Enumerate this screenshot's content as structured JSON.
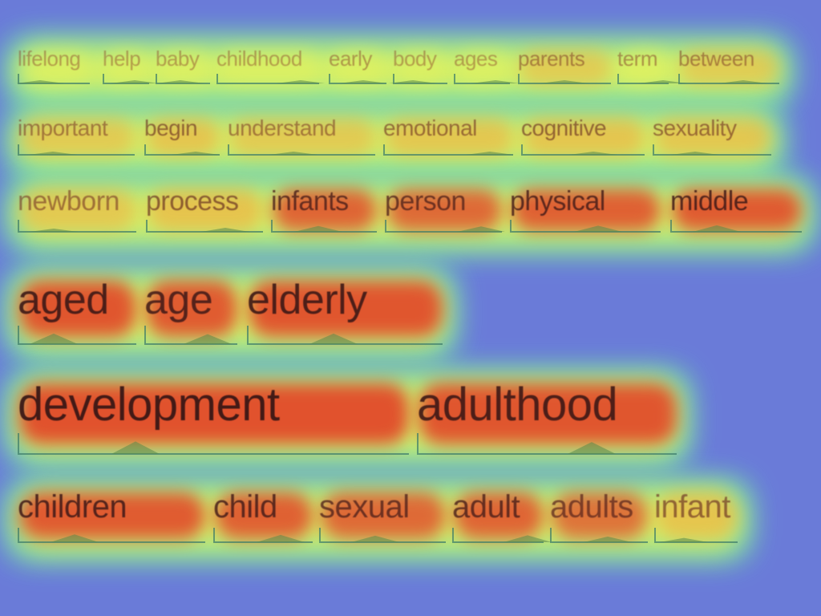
{
  "background_color": "#6a7bd8",
  "heat_colors": {
    "low": "#5ef0b0",
    "mid": "#e9f25a",
    "high": "#f0b040",
    "hot": "#e24a2a"
  },
  "rows": [
    {
      "words": [
        {
          "text": "lifelong",
          "weight": 0.15
        },
        {
          "text": "help",
          "weight": 0.15
        },
        {
          "text": "baby",
          "weight": 0.15
        },
        {
          "text": "childhood",
          "weight": 0.15
        },
        {
          "text": "early",
          "weight": 0.2
        },
        {
          "text": "body",
          "weight": 0.15
        },
        {
          "text": "ages",
          "weight": 0.15
        },
        {
          "text": "parents",
          "weight": 0.3
        },
        {
          "text": "term",
          "weight": 0.25
        },
        {
          "text": "between",
          "weight": 0.3
        }
      ]
    },
    {
      "words": [
        {
          "text": "important",
          "weight": 0.35
        },
        {
          "text": "begin",
          "weight": 0.5
        },
        {
          "text": "understand",
          "weight": 0.35
        },
        {
          "text": "emotional",
          "weight": 0.45
        },
        {
          "text": "cognitive",
          "weight": 0.5
        },
        {
          "text": "sexuality",
          "weight": 0.45
        }
      ]
    },
    {
      "words": [
        {
          "text": "newborn",
          "weight": 0.4
        },
        {
          "text": "process",
          "weight": 0.55
        },
        {
          "text": "infants",
          "weight": 0.8
        },
        {
          "text": "person",
          "weight": 0.75
        },
        {
          "text": "physical",
          "weight": 0.85
        },
        {
          "text": "middle",
          "weight": 0.9
        }
      ]
    },
    {
      "words": [
        {
          "text": "aged",
          "weight": 0.95
        },
        {
          "text": "age",
          "weight": 0.9
        },
        {
          "text": "elderly",
          "weight": 0.95
        }
      ]
    },
    {
      "words": [
        {
          "text": "development",
          "weight": 1.0
        },
        {
          "text": "adulthood",
          "weight": 0.95
        }
      ]
    },
    {
      "words": [
        {
          "text": "children",
          "weight": 0.9
        },
        {
          "text": "child",
          "weight": 0.85
        },
        {
          "text": "sexual",
          "weight": 0.75
        },
        {
          "text": "adult",
          "weight": 0.8
        },
        {
          "text": "adults",
          "weight": 0.65
        },
        {
          "text": "infant",
          "weight": 0.5
        }
      ]
    }
  ]
}
